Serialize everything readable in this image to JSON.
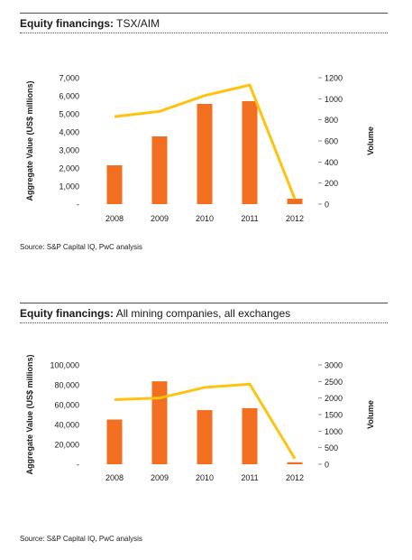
{
  "charts": [
    {
      "title_bold": "Equity financings:",
      "title_rest": " TSX/AIM",
      "source": "Source: S&P Capital IQ, PwC analysis"
    },
    {
      "title_bold": "Equity financings:",
      "title_rest": " All mining companies, all exchanges",
      "source": "Source: S&P Capital IQ, PwC analysis"
    }
  ],
  "colors": {
    "bar": "#f26f21",
    "line": "#ffc20e",
    "text": "#1a1a1a"
  },
  "chart_data": [
    {
      "type": "bar",
      "categories": [
        "2008",
        "2009",
        "2010",
        "2011",
        "2012"
      ],
      "series": [
        {
          "name": "Aggregate Value (US$ millions)",
          "type": "bar",
          "axis": "left",
          "values": [
            2150,
            3750,
            5550,
            5700,
            300
          ]
        },
        {
          "name": "Volume",
          "type": "line",
          "axis": "right",
          "values": [
            830,
            880,
            1030,
            1130,
            50
          ]
        }
      ],
      "ylabel": "Aggregate Value (US$ millions)",
      "y2label": "Volume",
      "ylim": [
        0,
        7000
      ],
      "y2lim": [
        0,
        1200
      ],
      "yticks": [
        "-",
        "1,000",
        "2,000",
        "3,000",
        "4,000",
        "5,000",
        "6,000",
        "7,000"
      ],
      "y2ticks": [
        "0",
        "200",
        "400",
        "600",
        "800",
        "1000",
        "1200"
      ],
      "grid": false
    },
    {
      "type": "bar",
      "categories": [
        "2008",
        "2009",
        "2010",
        "2011",
        "2012"
      ],
      "series": [
        {
          "name": "Aggregate Value (US$ millions)",
          "type": "bar",
          "axis": "left",
          "values": [
            45000,
            83500,
            54500,
            56500,
            2000
          ]
        },
        {
          "name": "Volume",
          "type": "line",
          "axis": "right",
          "values": [
            1950,
            2000,
            2320,
            2420,
            170
          ]
        }
      ],
      "ylabel": "Aggregate Value (US$ millions)",
      "y2label": "Volume",
      "ylim": [
        0,
        100000
      ],
      "y2lim": [
        0,
        3000
      ],
      "yticks": [
        "-",
        "20,000",
        "40,000",
        "60,000",
        "80,000",
        "100,000"
      ],
      "y2ticks": [
        "0",
        "500",
        "1000",
        "1500",
        "2000",
        "2500",
        "3000"
      ],
      "grid": false
    }
  ]
}
